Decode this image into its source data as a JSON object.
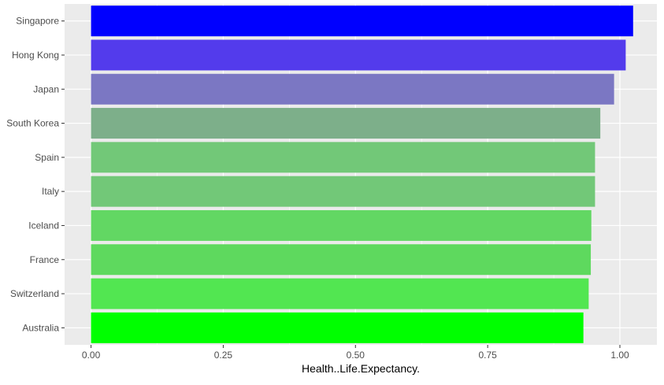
{
  "chart_data": {
    "type": "bar",
    "orientation": "horizontal",
    "title": "",
    "xlabel": "Health..Life.Expectancy.",
    "ylabel": "",
    "xlim": [
      -0.05,
      1.07
    ],
    "x_ticks": [
      0.0,
      0.25,
      0.5,
      0.75,
      1.0
    ],
    "x_tick_labels": [
      "0.00",
      "0.25",
      "0.50",
      "0.75",
      "1.00"
    ],
    "grid": true,
    "legend": "none",
    "categories": [
      "Singapore",
      "Hong Kong",
      "Japan",
      "South Korea",
      "Spain",
      "Italy",
      "Iceland",
      "France",
      "Switzerland",
      "Australia"
    ],
    "values": [
      1.025,
      1.011,
      0.989,
      0.963,
      0.953,
      0.953,
      0.946,
      0.945,
      0.941,
      0.931
    ],
    "colors": [
      "#0000ff",
      "#533bec",
      "#7b77c3",
      "#7daf8a",
      "#72c878",
      "#72c878",
      "#62d763",
      "#5ed95e",
      "#52e651",
      "#00ff00"
    ],
    "panel_background": "#ebebeb",
    "grid_color": "#ffffff"
  }
}
